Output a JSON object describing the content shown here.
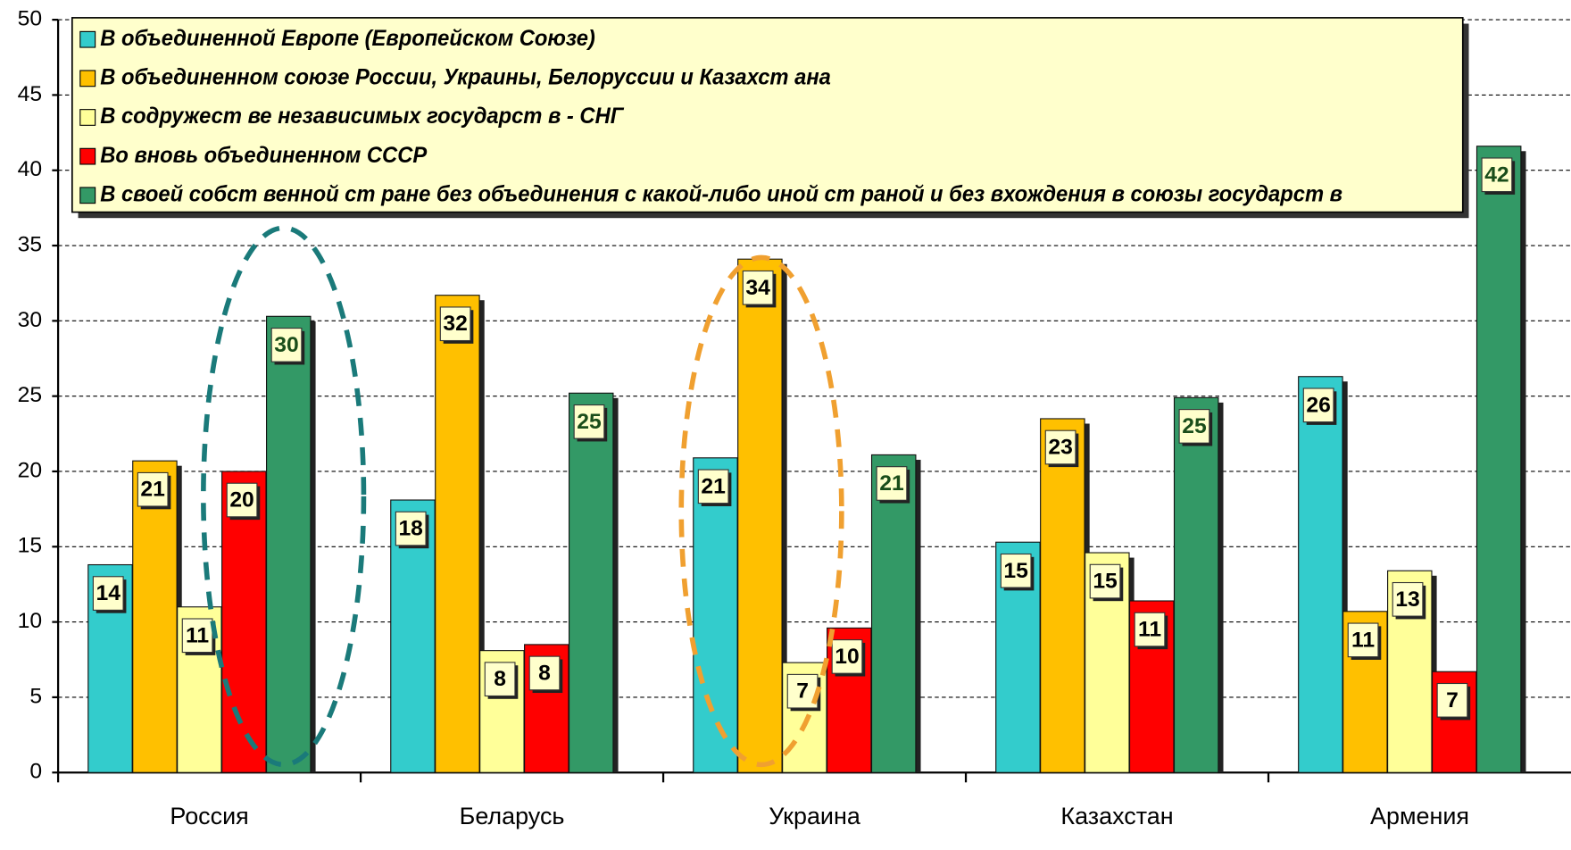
{
  "chart_data": {
    "type": "bar",
    "categories": [
      "Россия",
      "Беларусь",
      "Украина",
      "Казахстан",
      "Армения"
    ],
    "series": [
      {
        "name": "В объединенной Европе (Европейском Союзе)",
        "color": "#33cccc",
        "values": [
          13.8,
          18.1,
          20.9,
          15.3,
          26.3
        ],
        "value_labels": [
          "14",
          "18",
          "21",
          "15",
          "26"
        ]
      },
      {
        "name": "В объединенном союзе России, Украины, Белоруссии и Казахст ана",
        "color": "#ffc000",
        "values": [
          20.7,
          31.7,
          34.1,
          23.5,
          10.7
        ],
        "value_labels": [
          "21",
          "32",
          "34",
          "23",
          "11"
        ]
      },
      {
        "name": "В содружест ве независимых государст в - СНГ",
        "color": "#ffff99",
        "values": [
          11.0,
          8.1,
          7.3,
          14.6,
          13.4
        ],
        "value_labels": [
          "11",
          "8",
          "7",
          "15",
          "13"
        ]
      },
      {
        "name": "Во вновь объединенном СССР",
        "color": "#ff0000",
        "values": [
          20.0,
          8.5,
          9.6,
          11.4,
          6.7
        ],
        "value_labels": [
          "20",
          "8",
          "10",
          "11",
          "7"
        ]
      },
      {
        "name": "В своей собст венной ст ране без объединения с какой-либо иной ст раной и без вхождения в союзы государст в",
        "color": "#339966",
        "values": [
          30.3,
          25.2,
          21.1,
          24.9,
          41.6
        ],
        "value_labels": [
          "30",
          "25",
          "21",
          "25",
          "42"
        ]
      }
    ],
    "ylim": [
      0,
      50
    ],
    "yticks": [
      0,
      5,
      10,
      15,
      20,
      25,
      30,
      35,
      40,
      45,
      50
    ],
    "grid": true,
    "legend": "top"
  }
}
